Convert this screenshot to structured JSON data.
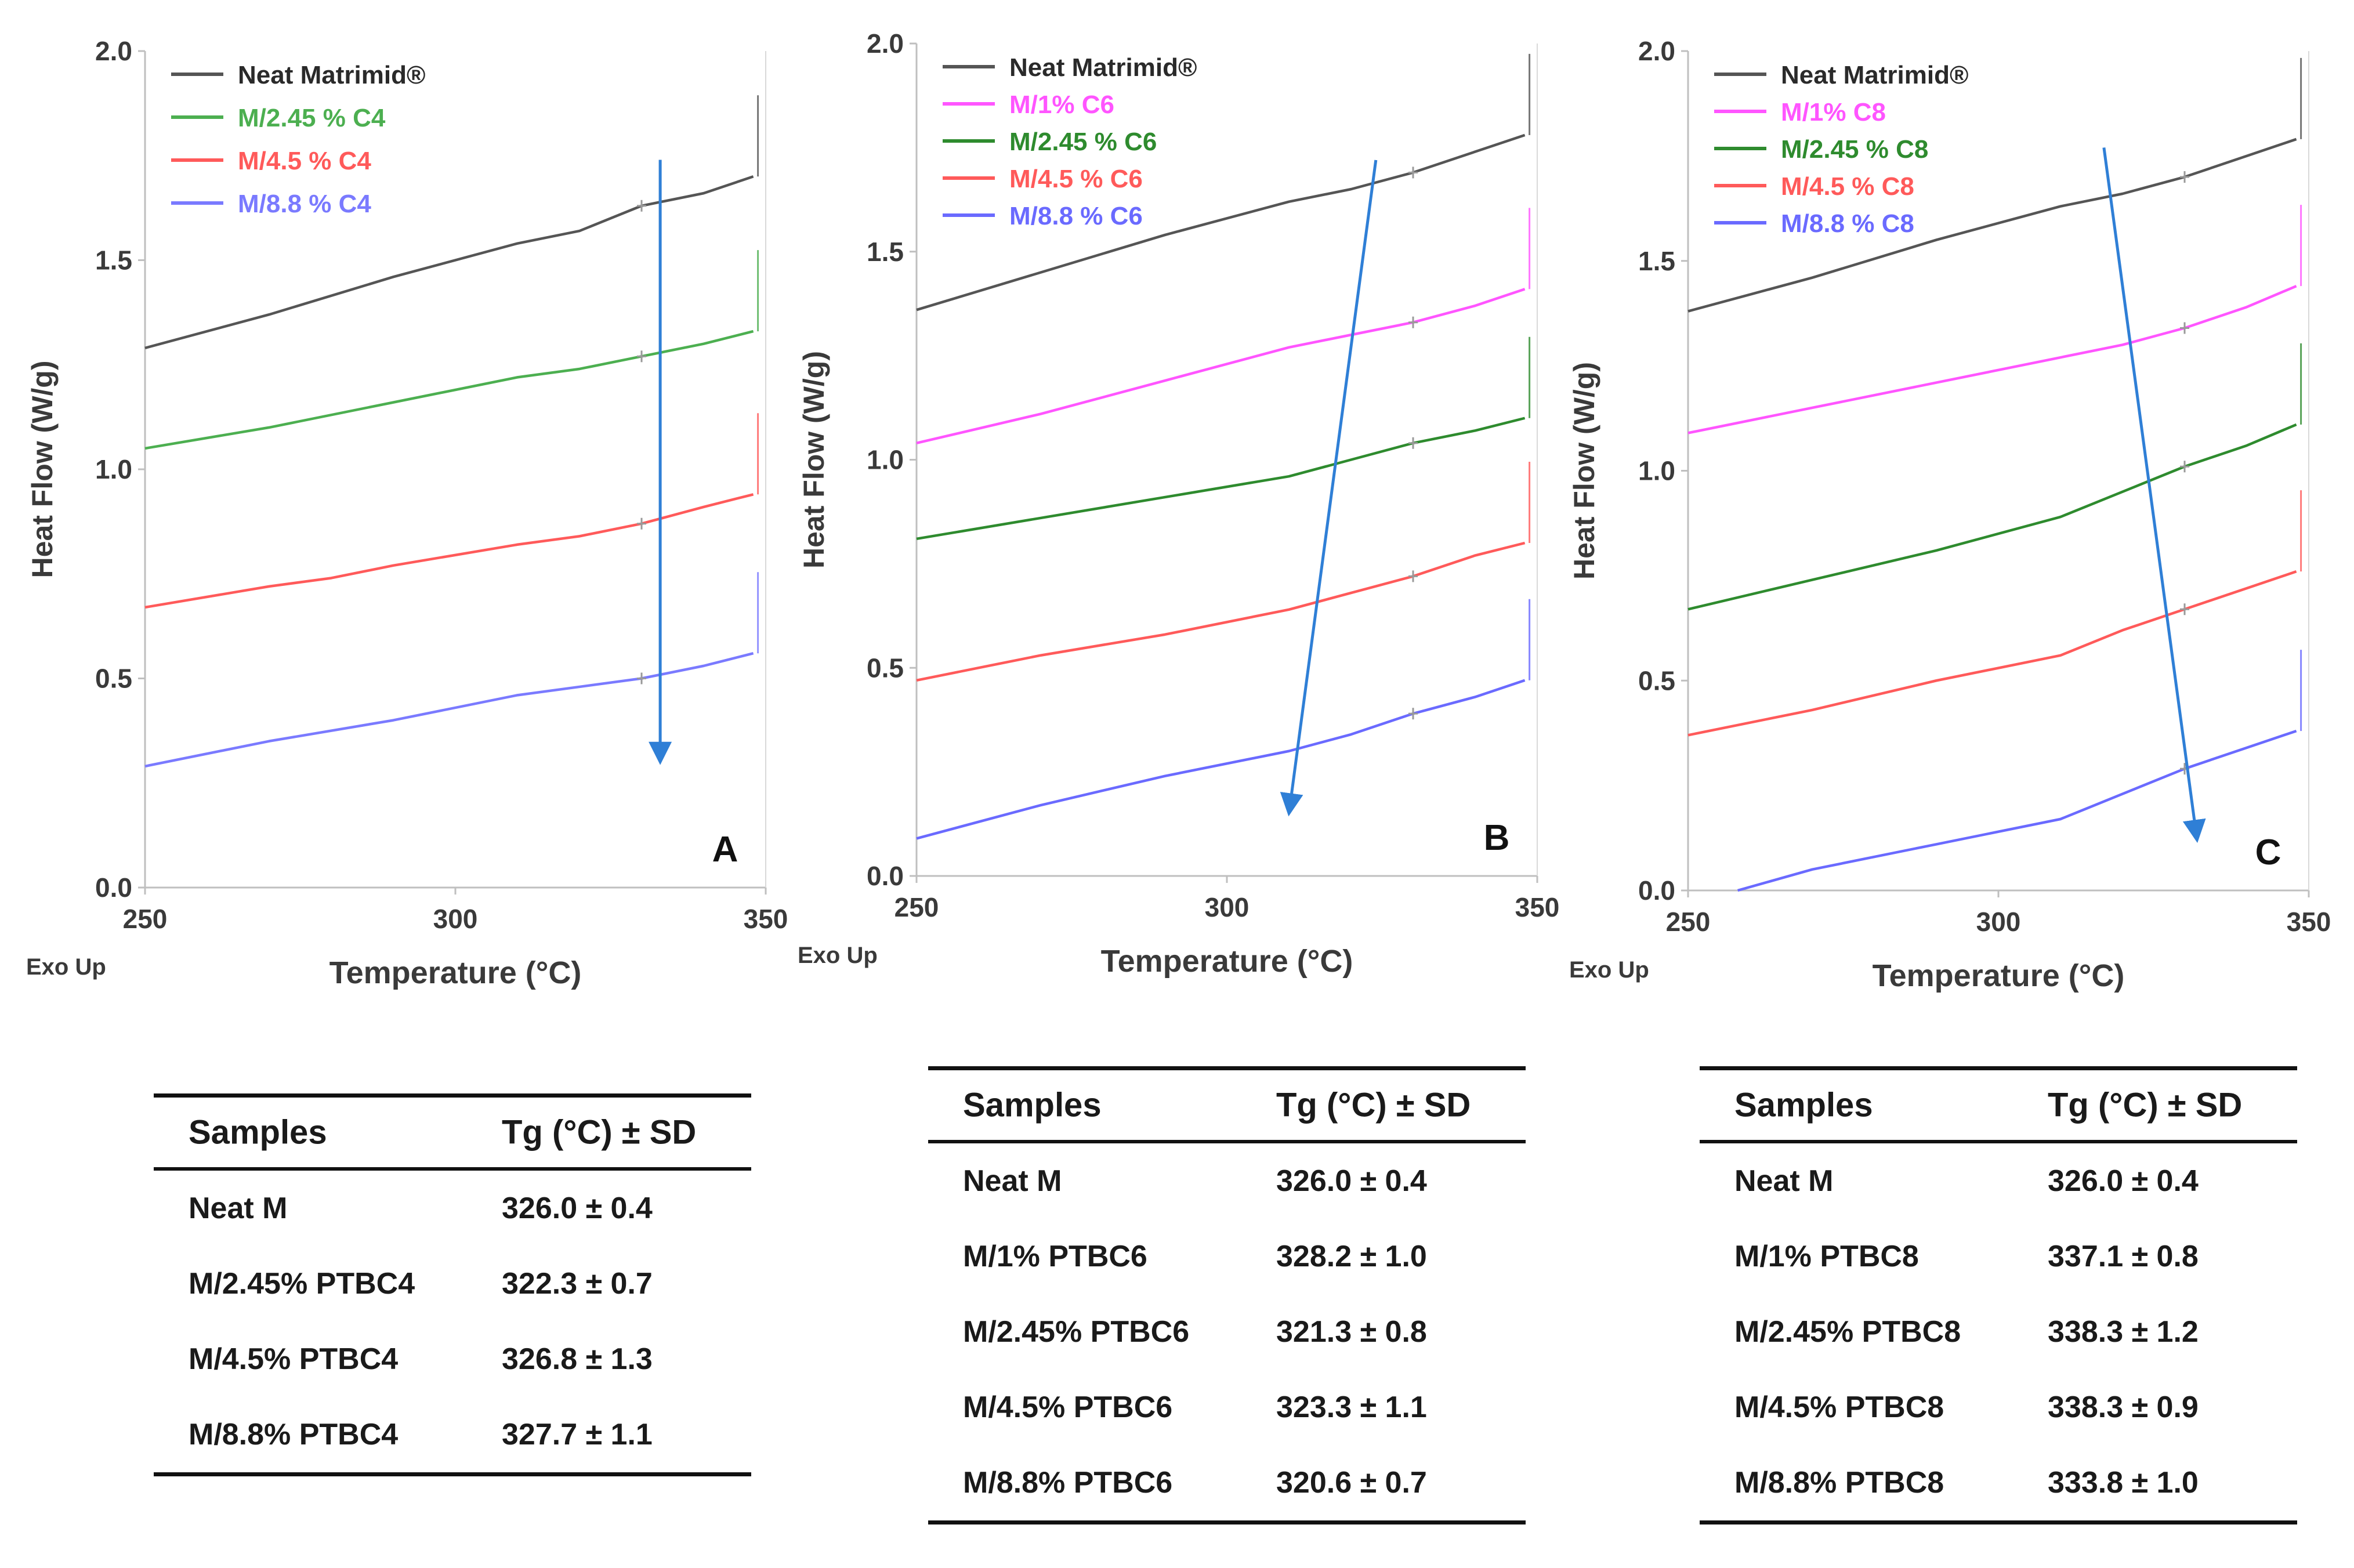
{
  "chart_data": [
    {
      "panel": "A",
      "type": "line",
      "xlabel": "Temperature (°C)",
      "ylabel": "Heat Flow (W/g)",
      "corner_note": "Exo Up",
      "xlim": [
        250,
        350
      ],
      "ylim": [
        0.0,
        2.0
      ],
      "xticks": [
        "250",
        "300",
        "350"
      ],
      "yticks": [
        "0.0",
        "0.5",
        "1.0",
        "1.5",
        "2.0"
      ],
      "legend_position": "top-left",
      "arrow": {
        "from": [
          333,
          1.74
        ],
        "to": [
          333,
          0.3
        ]
      },
      "series": [
        {
          "name": "Neat Matrimid®",
          "color": "#555555",
          "x": [
            250,
            270,
            290,
            310,
            320,
            330,
            340,
            348
          ],
          "y": [
            1.29,
            1.37,
            1.46,
            1.54,
            1.57,
            1.63,
            1.66,
            1.7
          ]
        },
        {
          "name": "M/2.45 % C4",
          "color": "#4caf50",
          "x": [
            250,
            270,
            290,
            310,
            320,
            330,
            340,
            348
          ],
          "y": [
            1.05,
            1.1,
            1.16,
            1.22,
            1.24,
            1.27,
            1.3,
            1.33
          ]
        },
        {
          "name": "M/4.5 % C4",
          "color": "#ff5a5a",
          "x": [
            250,
            270,
            280,
            290,
            310,
            320,
            330,
            340,
            348
          ],
          "y": [
            0.67,
            0.72,
            0.74,
            0.77,
            0.82,
            0.84,
            0.87,
            0.91,
            0.94
          ]
        },
        {
          "name": "M/8.8 % C4",
          "color": "#7a7aff",
          "x": [
            250,
            270,
            290,
            310,
            320,
            330,
            340,
            348
          ],
          "y": [
            0.29,
            0.35,
            0.4,
            0.46,
            0.48,
            0.5,
            0.53,
            0.56
          ]
        }
      ]
    },
    {
      "panel": "B",
      "type": "line",
      "xlabel": "Temperature (°C)",
      "ylabel": "Heat Flow (W/g)",
      "corner_note": "Exo Up",
      "xlim": [
        250,
        350
      ],
      "ylim": [
        0.0,
        2.0
      ],
      "xticks": [
        "250",
        "300",
        "350"
      ],
      "yticks": [
        "0.0",
        "0.5",
        "1.0",
        "1.5",
        "2.0"
      ],
      "legend_position": "top-left",
      "arrow": {
        "from": [
          324,
          1.72
        ],
        "to": [
          310,
          0.15
        ]
      },
      "series": [
        {
          "name": "Neat Matrimid®",
          "color": "#555555",
          "x": [
            250,
            270,
            290,
            310,
            320,
            330,
            340,
            348
          ],
          "y": [
            1.36,
            1.45,
            1.54,
            1.62,
            1.65,
            1.69,
            1.74,
            1.78
          ]
        },
        {
          "name": "M/1% C6",
          "color": "#ff55ff",
          "x": [
            250,
            270,
            290,
            310,
            320,
            330,
            340,
            348
          ],
          "y": [
            1.04,
            1.11,
            1.19,
            1.27,
            1.3,
            1.33,
            1.37,
            1.41
          ]
        },
        {
          "name": "M/2.45 % C6",
          "color": "#2e8b2e",
          "x": [
            250,
            270,
            290,
            310,
            320,
            330,
            340,
            348
          ],
          "y": [
            0.81,
            0.86,
            0.91,
            0.96,
            1.0,
            1.04,
            1.07,
            1.1
          ]
        },
        {
          "name": "M/4.5 % C6",
          "color": "#ff5a5a",
          "x": [
            250,
            270,
            290,
            310,
            320,
            330,
            340,
            348
          ],
          "y": [
            0.47,
            0.53,
            0.58,
            0.64,
            0.68,
            0.72,
            0.77,
            0.8
          ]
        },
        {
          "name": "M/8.8 % C6",
          "color": "#6a6aff",
          "x": [
            250,
            270,
            290,
            310,
            320,
            330,
            340,
            348
          ],
          "y": [
            0.09,
            0.17,
            0.24,
            0.3,
            0.34,
            0.39,
            0.43,
            0.47
          ]
        }
      ]
    },
    {
      "panel": "C",
      "type": "line",
      "xlabel": "Temperature (°C)",
      "ylabel": "Heat Flow (W/g)",
      "corner_note": "Exo Up",
      "xlim": [
        250,
        350
      ],
      "ylim": [
        0.0,
        2.0
      ],
      "xticks": [
        "250",
        "300",
        "350"
      ],
      "yticks": [
        "0.0",
        "0.5",
        "1.0",
        "1.5",
        "2.0"
      ],
      "legend_position": "top-left",
      "arrow": {
        "from": [
          317,
          1.77
        ],
        "to": [
          332,
          0.12
        ]
      },
      "series": [
        {
          "name": "Neat Matrimid®",
          "color": "#555555",
          "x": [
            250,
            270,
            290,
            310,
            320,
            330,
            340,
            348
          ],
          "y": [
            1.38,
            1.46,
            1.55,
            1.63,
            1.66,
            1.7,
            1.75,
            1.79
          ]
        },
        {
          "name": "M/1% C8",
          "color": "#ff55ff",
          "x": [
            250,
            270,
            290,
            310,
            320,
            330,
            340,
            348
          ],
          "y": [
            1.09,
            1.15,
            1.21,
            1.27,
            1.3,
            1.34,
            1.39,
            1.44
          ]
        },
        {
          "name": "M/2.45 % C8",
          "color": "#2e8b2e",
          "x": [
            250,
            270,
            290,
            310,
            320,
            330,
            340,
            348
          ],
          "y": [
            0.67,
            0.74,
            0.81,
            0.89,
            0.95,
            1.01,
            1.06,
            1.11
          ]
        },
        {
          "name": "M/4.5 % C8",
          "color": "#ff5a5a",
          "x": [
            250,
            270,
            290,
            310,
            320,
            330,
            340,
            348
          ],
          "y": [
            0.37,
            0.43,
            0.5,
            0.56,
            0.62,
            0.67,
            0.72,
            0.76
          ]
        },
        {
          "name": "M/8.8 % C8",
          "color": "#6a6aff",
          "x": [
            258,
            270,
            290,
            310,
            320,
            330,
            340,
            348
          ],
          "y": [
            0.0,
            0.05,
            0.11,
            0.17,
            0.23,
            0.29,
            0.34,
            0.38
          ]
        }
      ]
    }
  ],
  "tables": [
    {
      "headers": [
        "Samples",
        "Tg (°C) ± SD"
      ],
      "rows": [
        [
          "Neat M",
          "326.0 ± 0.4"
        ],
        [
          "M/2.45% PTBC4",
          "322.3 ± 0.7"
        ],
        [
          "M/4.5% PTBC4",
          "326.8 ± 1.3"
        ],
        [
          "M/8.8% PTBC4",
          "327.7 ± 1.1"
        ]
      ]
    },
    {
      "headers": [
        "Samples",
        "Tg (°C) ± SD"
      ],
      "rows": [
        [
          "Neat M",
          "326.0 ± 0.4"
        ],
        [
          "M/1% PTBC6",
          "328.2 ± 1.0"
        ],
        [
          "M/2.45% PTBC6",
          "321.3 ± 0.8"
        ],
        [
          "M/4.5% PTBC6",
          "323.3 ± 1.1"
        ],
        [
          "M/8.8% PTBC6",
          "320.6 ± 0.7"
        ]
      ]
    },
    {
      "headers": [
        "Samples",
        "Tg (°C) ± SD"
      ],
      "rows": [
        [
          "Neat M",
          "326.0 ± 0.4"
        ],
        [
          "M/1% PTBC8",
          "337.1 ± 0.8"
        ],
        [
          "M/2.45% PTBC8",
          "338.3 ± 1.2"
        ],
        [
          "M/4.5% PTBC8",
          "338.3 ± 0.9"
        ],
        [
          "M/8.8% PTBC8",
          "333.8 ± 1.0"
        ]
      ]
    }
  ],
  "colors": {
    "axis": "#bfbfbf",
    "text": "#1a1a1a",
    "arrow": "#2f7fd6"
  }
}
